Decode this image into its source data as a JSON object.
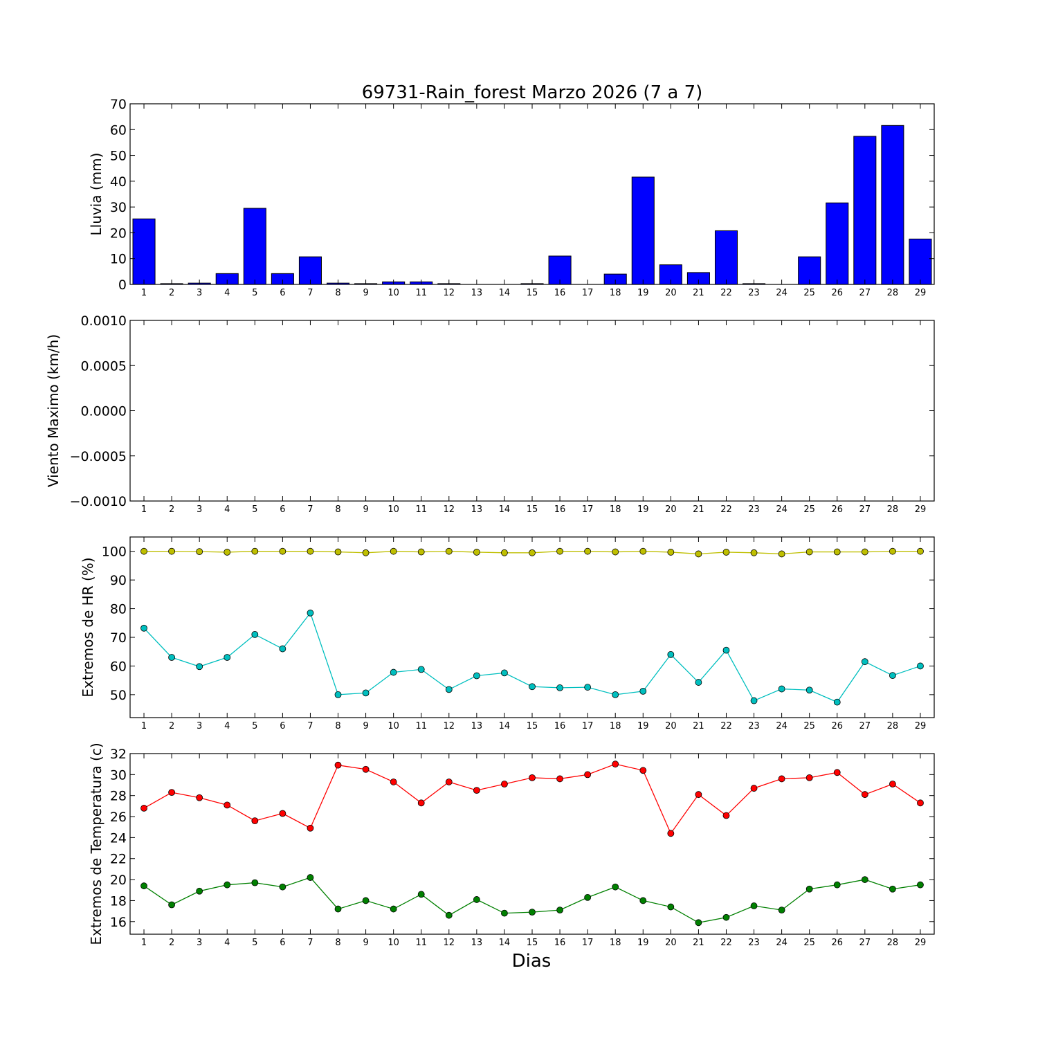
{
  "figure": {
    "title": "69731-Rain_forest Marzo 2026  (7 a 7)",
    "xlabel": "Dias"
  },
  "chart_data": [
    {
      "type": "bar",
      "ylabel": "Lluvia (mm)",
      "ylim": [
        0,
        70
      ],
      "yticks": [
        0,
        10,
        20,
        30,
        40,
        50,
        60,
        70
      ],
      "ytick_labels": [
        "0",
        "10",
        "20",
        "30",
        "40",
        "50",
        "60",
        "70"
      ],
      "categories": [
        "1",
        "2",
        "3",
        "4",
        "5",
        "6",
        "7",
        "8",
        "9",
        "10",
        "11",
        "12",
        "13",
        "14",
        "15",
        "16",
        "17",
        "18",
        "19",
        "20",
        "21",
        "22",
        "23",
        "24",
        "25",
        "26",
        "27",
        "28",
        "29"
      ],
      "series": [
        {
          "color": "#0000ff",
          "values": [
            25.4,
            0.3,
            0.5,
            4.2,
            29.5,
            4.2,
            10.7,
            0.5,
            0.3,
            1.0,
            1.0,
            0.3,
            0.0,
            0.0,
            0.3,
            11.0,
            0.0,
            4.0,
            41.6,
            7.6,
            4.6,
            20.8,
            0.3,
            0.0,
            10.7,
            31.6,
            57.4,
            61.6,
            17.6
          ]
        }
      ]
    },
    {
      "type": "line",
      "ylabel": "Viento Maximo (km/h)",
      "ylim": [
        -0.001,
        0.001
      ],
      "yticks": [
        -0.001,
        -0.0005,
        0.0,
        0.0005,
        0.001
      ],
      "ytick_labels": [
        "−0.0010",
        "−0.0005",
        "0.0000",
        "0.0005",
        "0.0010"
      ],
      "categories": [
        "1",
        "2",
        "3",
        "4",
        "5",
        "6",
        "7",
        "8",
        "9",
        "10",
        "11",
        "12",
        "13",
        "14",
        "15",
        "16",
        "17",
        "18",
        "19",
        "20",
        "21",
        "22",
        "23",
        "24",
        "25",
        "26",
        "27",
        "28",
        "29"
      ],
      "series": []
    },
    {
      "type": "line",
      "ylabel": "Extremos de HR (%)",
      "ylim": [
        42,
        105
      ],
      "yticks": [
        50,
        60,
        70,
        80,
        90,
        100
      ],
      "ytick_labels": [
        "50",
        "60",
        "70",
        "80",
        "90",
        "100"
      ],
      "categories": [
        "1",
        "2",
        "3",
        "4",
        "5",
        "6",
        "7",
        "8",
        "9",
        "10",
        "11",
        "12",
        "13",
        "14",
        "15",
        "16",
        "17",
        "18",
        "19",
        "20",
        "21",
        "22",
        "23",
        "24",
        "25",
        "26",
        "27",
        "28",
        "29"
      ],
      "series": [
        {
          "color": "#bfbf00",
          "values": [
            100,
            100,
            99.9,
            99.7,
            100,
            100,
            100,
            99.8,
            99.5,
            100,
            99.8,
            100,
            99.7,
            99.5,
            99.5,
            100,
            100,
            99.8,
            100,
            99.7,
            99.1,
            99.7,
            99.5,
            99.1,
            99.8,
            99.8,
            99.8,
            100,
            100
          ]
        },
        {
          "color": "#00bfbf",
          "values": [
            73.2,
            63.0,
            59.8,
            63.0,
            71.0,
            66.0,
            78.5,
            50.0,
            50.6,
            57.8,
            58.8,
            51.8,
            56.6,
            57.6,
            52.8,
            52.4,
            52.6,
            50.0,
            51.2,
            64.0,
            54.3,
            65.5,
            47.9,
            52.0,
            51.6,
            47.4,
            61.5,
            56.7,
            60.0
          ]
        }
      ]
    },
    {
      "type": "line",
      "ylabel": "Extremos de Temperatura (c)",
      "ylim": [
        14.8,
        32
      ],
      "yticks": [
        16,
        18,
        20,
        22,
        24,
        26,
        28,
        30,
        32
      ],
      "ytick_labels": [
        "16",
        "18",
        "20",
        "22",
        "24",
        "26",
        "28",
        "30",
        "32"
      ],
      "categories": [
        "1",
        "2",
        "3",
        "4",
        "5",
        "6",
        "7",
        "8",
        "9",
        "10",
        "11",
        "12",
        "13",
        "14",
        "15",
        "16",
        "17",
        "18",
        "19",
        "20",
        "21",
        "22",
        "23",
        "24",
        "25",
        "26",
        "27",
        "28",
        "29"
      ],
      "series": [
        {
          "color": "#ff0000",
          "values": [
            26.8,
            28.3,
            27.8,
            27.1,
            25.6,
            26.3,
            24.9,
            30.9,
            30.5,
            29.3,
            27.3,
            29.3,
            28.5,
            29.1,
            29.7,
            29.6,
            30.0,
            31.0,
            30.4,
            24.4,
            28.1,
            26.1,
            28.7,
            29.6,
            29.7,
            30.2,
            28.1,
            29.1,
            27.3
          ]
        },
        {
          "color": "#008000",
          "values": [
            19.4,
            17.6,
            18.9,
            19.5,
            19.7,
            19.3,
            20.2,
            17.2,
            18.0,
            17.2,
            18.6,
            16.6,
            18.1,
            16.8,
            16.9,
            17.1,
            18.3,
            19.3,
            18.0,
            17.4,
            15.9,
            16.4,
            17.5,
            17.1,
            19.1,
            19.5,
            20.0,
            19.1,
            19.5
          ]
        }
      ]
    }
  ]
}
